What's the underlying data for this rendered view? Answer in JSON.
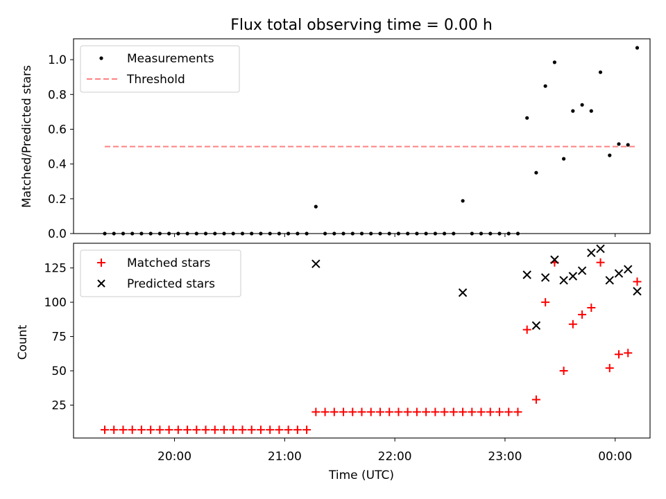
{
  "title": "Flux total observing time = 0.00 h",
  "chart_data": [
    {
      "type": "scatter",
      "panel": "top",
      "ylabel": "Matched/Predicted stars",
      "ylim": [
        0,
        1.12
      ],
      "yticks": [
        0.0,
        0.2,
        0.4,
        0.6,
        0.8,
        1.0
      ],
      "ytick_labels": [
        "0.0",
        "0.2",
        "0.4",
        "0.6",
        "0.8",
        "1.0"
      ],
      "legend": {
        "placement": "upper-left",
        "entries": [
          "Measurements",
          "Threshold"
        ]
      },
      "series": [
        {
          "name": "Measurements",
          "marker": "dot",
          "color": "#000000",
          "points": [
            [
              "19:22",
              0
            ],
            [
              "19:27",
              0
            ],
            [
              "19:32",
              0
            ],
            [
              "19:37",
              0
            ],
            [
              "19:42",
              0
            ],
            [
              "19:47",
              0
            ],
            [
              "19:52",
              0
            ],
            [
              "19:57",
              0
            ],
            [
              "20:02",
              0
            ],
            [
              "20:07",
              0
            ],
            [
              "20:12",
              0
            ],
            [
              "20:17",
              0
            ],
            [
              "20:22",
              0
            ],
            [
              "20:27",
              0
            ],
            [
              "20:32",
              0
            ],
            [
              "20:37",
              0
            ],
            [
              "20:42",
              0
            ],
            [
              "20:47",
              0
            ],
            [
              "20:52",
              0
            ],
            [
              "20:57",
              0
            ],
            [
              "21:02",
              0
            ],
            [
              "21:07",
              0
            ],
            [
              "21:12",
              0
            ],
            [
              "21:17",
              0.155
            ],
            [
              "21:22",
              0
            ],
            [
              "21:27",
              0
            ],
            [
              "21:32",
              0
            ],
            [
              "21:37",
              0
            ],
            [
              "21:42",
              0
            ],
            [
              "21:47",
              0
            ],
            [
              "21:52",
              0
            ],
            [
              "21:57",
              0
            ],
            [
              "22:02",
              0
            ],
            [
              "22:07",
              0
            ],
            [
              "22:12",
              0
            ],
            [
              "22:17",
              0
            ],
            [
              "22:22",
              0
            ],
            [
              "22:27",
              0
            ],
            [
              "22:32",
              0
            ],
            [
              "22:37",
              0.188
            ],
            [
              "22:42",
              0
            ],
            [
              "22:47",
              0
            ],
            [
              "22:52",
              0
            ],
            [
              "22:57",
              0
            ],
            [
              "23:02",
              0
            ],
            [
              "23:07",
              0
            ],
            [
              "23:12",
              0.665
            ],
            [
              "23:17",
              0.35
            ],
            [
              "23:22",
              0.848
            ],
            [
              "23:27",
              0.985
            ],
            [
              "23:32",
              0.43
            ],
            [
              "23:37",
              0.705
            ],
            [
              "23:42",
              0.74
            ],
            [
              "23:47",
              0.705
            ],
            [
              "23:52",
              0.928
            ],
            [
              "23:57",
              0.45
            ],
            [
              "00:02",
              0.515
            ],
            [
              "00:07",
              0.51
            ],
            [
              "00:12",
              1.068
            ]
          ]
        },
        {
          "name": "Threshold",
          "style": "dashed",
          "color": "#ff8080",
          "points": [
            [
              "19:22",
              0.5
            ],
            [
              "00:12",
              0.5
            ]
          ]
        }
      ]
    },
    {
      "type": "scatter",
      "panel": "bottom",
      "xlabel": "Time (UTC)",
      "ylabel": "Count",
      "ylim": [
        1,
        143
      ],
      "yticks": [
        25,
        50,
        75,
        100,
        125
      ],
      "ytick_labels": [
        "25",
        "50",
        "75",
        "100",
        "125"
      ],
      "xticks": [
        "20:00",
        "21:00",
        "22:00",
        "23:00",
        "00:00"
      ],
      "xlim": [
        "19:05",
        "00:19"
      ],
      "legend": {
        "placement": "upper-left",
        "entries": [
          "Matched stars",
          "Predicted stars"
        ]
      },
      "series": [
        {
          "name": "Matched stars",
          "marker": "plus",
          "color": "#ff0000",
          "points": [
            [
              "19:22",
              7
            ],
            [
              "19:27",
              7
            ],
            [
              "19:32",
              7
            ],
            [
              "19:37",
              7
            ],
            [
              "19:42",
              7
            ],
            [
              "19:47",
              7
            ],
            [
              "19:52",
              7
            ],
            [
              "19:57",
              7
            ],
            [
              "20:02",
              7
            ],
            [
              "20:07",
              7
            ],
            [
              "20:12",
              7
            ],
            [
              "20:17",
              7
            ],
            [
              "20:22",
              7
            ],
            [
              "20:27",
              7
            ],
            [
              "20:32",
              7
            ],
            [
              "20:37",
              7
            ],
            [
              "20:42",
              7
            ],
            [
              "20:47",
              7
            ],
            [
              "20:52",
              7
            ],
            [
              "20:57",
              7
            ],
            [
              "21:02",
              7
            ],
            [
              "21:07",
              7
            ],
            [
              "21:12",
              7
            ],
            [
              "21:17",
              20
            ],
            [
              "21:22",
              20
            ],
            [
              "21:27",
              20
            ],
            [
              "21:32",
              20
            ],
            [
              "21:37",
              20
            ],
            [
              "21:42",
              20
            ],
            [
              "21:47",
              20
            ],
            [
              "21:52",
              20
            ],
            [
              "21:57",
              20
            ],
            [
              "22:02",
              20
            ],
            [
              "22:07",
              20
            ],
            [
              "22:12",
              20
            ],
            [
              "22:17",
              20
            ],
            [
              "22:22",
              20
            ],
            [
              "22:27",
              20
            ],
            [
              "22:32",
              20
            ],
            [
              "22:37",
              20
            ],
            [
              "22:42",
              20
            ],
            [
              "22:47",
              20
            ],
            [
              "22:52",
              20
            ],
            [
              "22:57",
              20
            ],
            [
              "23:02",
              20
            ],
            [
              "23:07",
              20
            ],
            [
              "23:12",
              80
            ],
            [
              "23:17",
              29
            ],
            [
              "23:22",
              100
            ],
            [
              "23:27",
              129
            ],
            [
              "23:32",
              50
            ],
            [
              "23:37",
              84
            ],
            [
              "23:42",
              91
            ],
            [
              "23:47",
              96
            ],
            [
              "23:52",
              129
            ],
            [
              "23:57",
              52
            ],
            [
              "00:02",
              62
            ],
            [
              "00:07",
              63
            ],
            [
              "00:12",
              115
            ]
          ]
        },
        {
          "name": "Predicted stars",
          "marker": "x",
          "color": "#000000",
          "points": [
            [
              "21:17",
              128
            ],
            [
              "22:37",
              107
            ],
            [
              "23:12",
              120
            ],
            [
              "23:17",
              83
            ],
            [
              "23:22",
              118
            ],
            [
              "23:27",
              131
            ],
            [
              "23:32",
              116
            ],
            [
              "23:37",
              119
            ],
            [
              "23:42",
              123
            ],
            [
              "23:47",
              136
            ],
            [
              "23:52",
              139
            ],
            [
              "23:57",
              116
            ],
            [
              "00:02",
              121
            ],
            [
              "00:07",
              124
            ],
            [
              "00:12",
              108
            ]
          ]
        }
      ]
    }
  ]
}
